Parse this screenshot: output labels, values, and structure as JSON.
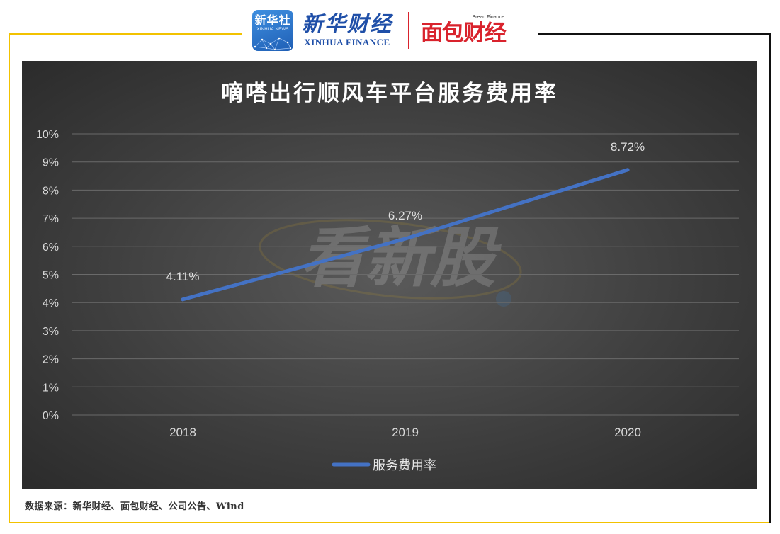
{
  "header": {
    "xinhua_badge_cn": "新华社",
    "xinhua_badge_en": "XINHUA NEWS",
    "xinhua_finance_cn": "新华财经",
    "xinhua_finance_en": "XINHUA FINANCE",
    "bread_finance_en": "Bread Finance",
    "bread_finance_cn": "面包财经"
  },
  "colors": {
    "frame_accent": "#f2c200",
    "frame_dark": "#111111",
    "brand_blue": "#1f4fa8",
    "brand_red": "#d9232d",
    "series_line": "#4472c4",
    "panel_bg": "#404040"
  },
  "watermark": "看新股",
  "chart_data": {
    "type": "line",
    "title": "嘀嗒出行顺风车平台服务费用率",
    "categories": [
      "2018",
      "2019",
      "2020"
    ],
    "series": [
      {
        "name": "服务费用率",
        "values": [
          4.11,
          6.27,
          8.72
        ],
        "labels": [
          "4.11%",
          "6.27%",
          "8.72%"
        ],
        "color": "#4472c4"
      }
    ],
    "ylim": [
      0,
      10
    ],
    "yticks": [
      "0%",
      "1%",
      "2%",
      "3%",
      "4%",
      "5%",
      "6%",
      "7%",
      "8%",
      "9%",
      "10%"
    ],
    "grid": true,
    "legend": "bottom"
  },
  "footer": {
    "source": "数据来源：新华财经、面包财经、公司公告、Wind"
  }
}
